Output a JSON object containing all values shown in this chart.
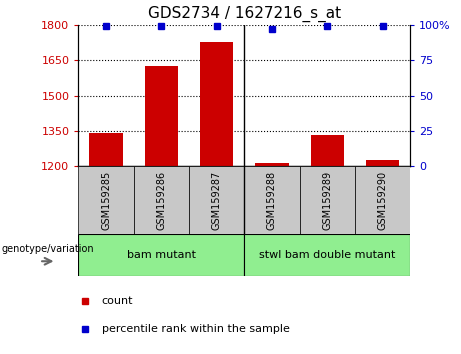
{
  "title": "GDS2734 / 1627216_s_at",
  "samples": [
    "GSM159285",
    "GSM159286",
    "GSM159287",
    "GSM159288",
    "GSM159289",
    "GSM159290"
  ],
  "counts": [
    1340,
    1625,
    1725,
    1215,
    1335,
    1225
  ],
  "percentiles": [
    99,
    99,
    99,
    97,
    99,
    99
  ],
  "ylim_left": [
    1200,
    1800
  ],
  "ylim_right": [
    0,
    100
  ],
  "yticks_left": [
    1200,
    1350,
    1500,
    1650,
    1800
  ],
  "yticks_right": [
    0,
    25,
    50,
    75,
    100
  ],
  "bar_color": "#cc0000",
  "dot_color": "#0000cc",
  "groups": [
    {
      "label": "bam mutant",
      "indices": [
        0,
        1,
        2
      ]
    },
    {
      "label": "stwl bam double mutant",
      "indices": [
        3,
        4,
        5
      ]
    }
  ],
  "group_label_prefix": "genotype/variation",
  "legend_count_label": "count",
  "legend_percentile_label": "percentile rank within the sample",
  "tick_area_color": "#c8c8c8",
  "group_color": "#90ee90"
}
